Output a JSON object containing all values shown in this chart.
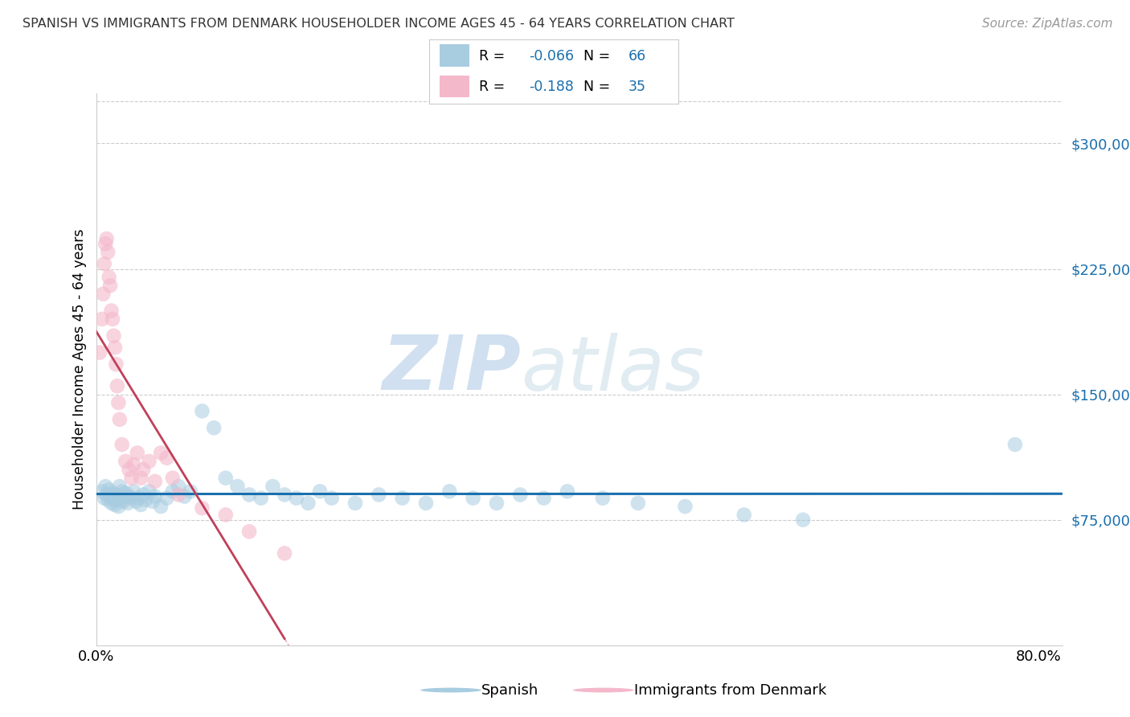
{
  "title": "SPANISH VS IMMIGRANTS FROM DENMARK HOUSEHOLDER INCOME AGES 45 - 64 YEARS CORRELATION CHART",
  "source": "Source: ZipAtlas.com",
  "ylabel": "Householder Income Ages 45 - 64 years",
  "watermark_zip": "ZIP",
  "watermark_atlas": "atlas",
  "legend1_label": "Spanish",
  "legend2_label": "Immigrants from Denmark",
  "r1": -0.066,
  "n1": 66,
  "r2": -0.188,
  "n2": 35,
  "yticks": [
    75000,
    150000,
    225000,
    300000
  ],
  "ytick_labels": [
    "$75,000",
    "$150,000",
    "$225,000",
    "$300,000"
  ],
  "xlim": [
    0.0,
    0.82
  ],
  "ylim": [
    0,
    330000
  ],
  "blue_color": "#a8cce0",
  "pink_color": "#f4b8cb",
  "blue_line_color": "#1a6fad",
  "pink_line_color": "#c0405a",
  "pink_line_dashed_color": "#e0a0b0",
  "title_color": "#333333",
  "source_color": "#999999",
  "grid_color": "#cccccc",
  "spanish_x": [
    0.005,
    0.007,
    0.008,
    0.009,
    0.01,
    0.011,
    0.012,
    0.013,
    0.014,
    0.015,
    0.016,
    0.017,
    0.018,
    0.019,
    0.02,
    0.021,
    0.022,
    0.023,
    0.024,
    0.025,
    0.027,
    0.028,
    0.03,
    0.032,
    0.034,
    0.036,
    0.038,
    0.04,
    0.042,
    0.045,
    0.048,
    0.05,
    0.055,
    0.06,
    0.065,
    0.07,
    0.075,
    0.08,
    0.09,
    0.1,
    0.11,
    0.12,
    0.13,
    0.14,
    0.15,
    0.16,
    0.17,
    0.18,
    0.19,
    0.2,
    0.22,
    0.24,
    0.26,
    0.28,
    0.3,
    0.32,
    0.34,
    0.36,
    0.38,
    0.4,
    0.43,
    0.46,
    0.5,
    0.55,
    0.6,
    0.78
  ],
  "spanish_y": [
    92000,
    88000,
    95000,
    90000,
    87000,
    93000,
    89000,
    85000,
    91000,
    88000,
    84000,
    90000,
    87000,
    83000,
    95000,
    89000,
    92000,
    86000,
    88000,
    91000,
    85000,
    89000,
    88000,
    92000,
    86000,
    88000,
    84000,
    90000,
    87000,
    92000,
    86000,
    89000,
    83000,
    88000,
    92000,
    95000,
    89000,
    92000,
    140000,
    130000,
    100000,
    95000,
    90000,
    88000,
    95000,
    90000,
    88000,
    85000,
    92000,
    88000,
    85000,
    90000,
    88000,
    85000,
    92000,
    88000,
    85000,
    90000,
    88000,
    92000,
    88000,
    85000,
    83000,
    78000,
    75000,
    120000
  ],
  "denmark_x": [
    0.003,
    0.005,
    0.006,
    0.007,
    0.008,
    0.009,
    0.01,
    0.011,
    0.012,
    0.013,
    0.014,
    0.015,
    0.016,
    0.017,
    0.018,
    0.019,
    0.02,
    0.022,
    0.025,
    0.028,
    0.03,
    0.032,
    0.035,
    0.038,
    0.04,
    0.045,
    0.05,
    0.055,
    0.06,
    0.065,
    0.07,
    0.09,
    0.11,
    0.13,
    0.16
  ],
  "denmark_y": [
    175000,
    195000,
    210000,
    228000,
    240000,
    243000,
    235000,
    220000,
    215000,
    200000,
    195000,
    185000,
    178000,
    168000,
    155000,
    145000,
    135000,
    120000,
    110000,
    105000,
    100000,
    108000,
    115000,
    100000,
    105000,
    110000,
    98000,
    115000,
    112000,
    100000,
    90000,
    82000,
    78000,
    68000,
    55000
  ]
}
